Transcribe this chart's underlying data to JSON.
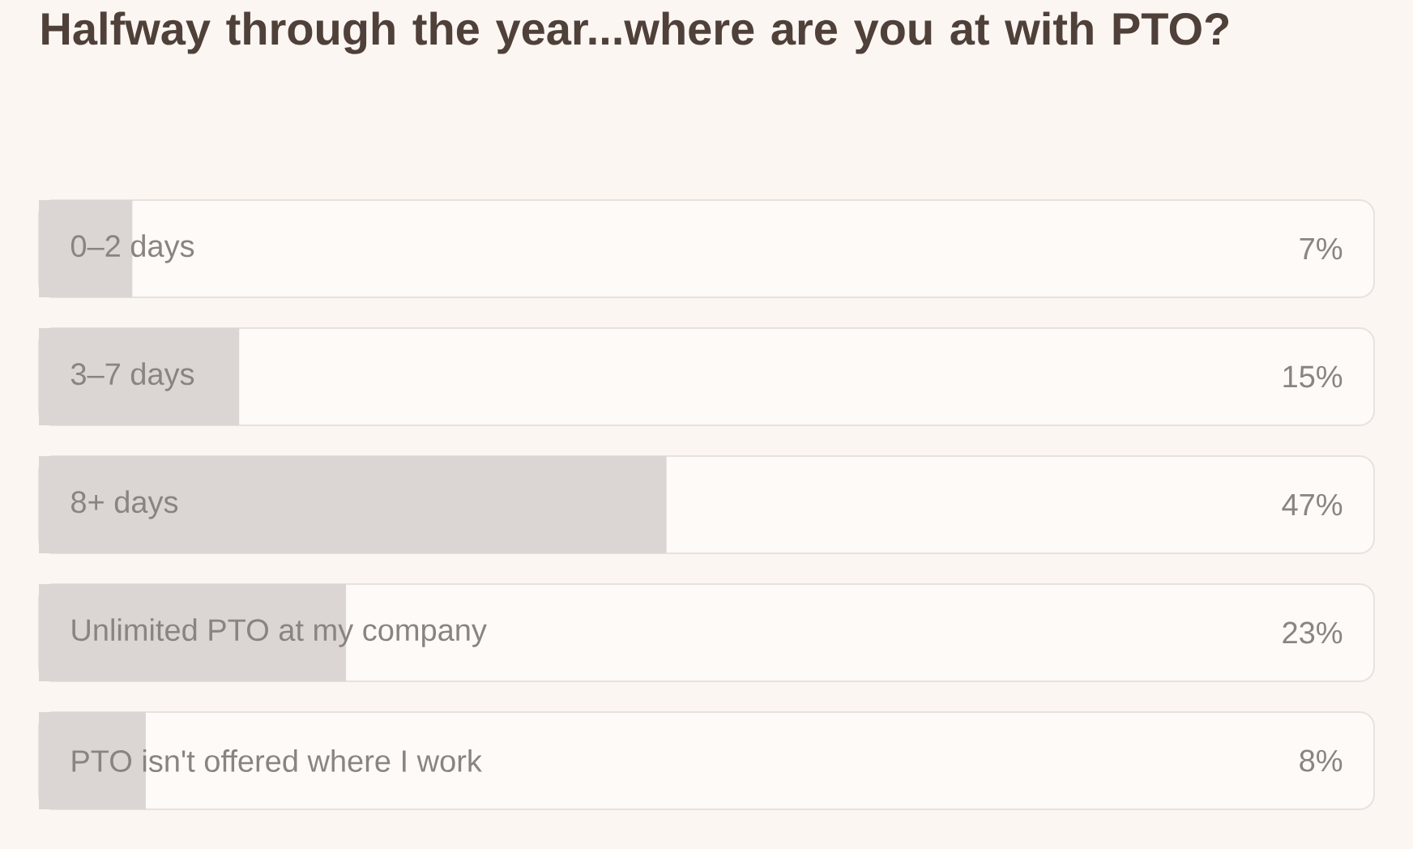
{
  "chart_data": {
    "type": "bar",
    "orientation": "horizontal",
    "title": "Halfway through the year...where are you at with PTO?",
    "categories": [
      "0–2 days",
      "3–7 days",
      "8+ days",
      "Unlimited PTO at my company",
      "PTO isn't offered where I work"
    ],
    "values": [
      7,
      15,
      47,
      23,
      8
    ],
    "value_labels": [
      "7%",
      "15%",
      "47%",
      "23%",
      "8%"
    ],
    "color": "#dbd6d3",
    "xlim": [
      0,
      100
    ],
    "tick_labels": "y"
  }
}
